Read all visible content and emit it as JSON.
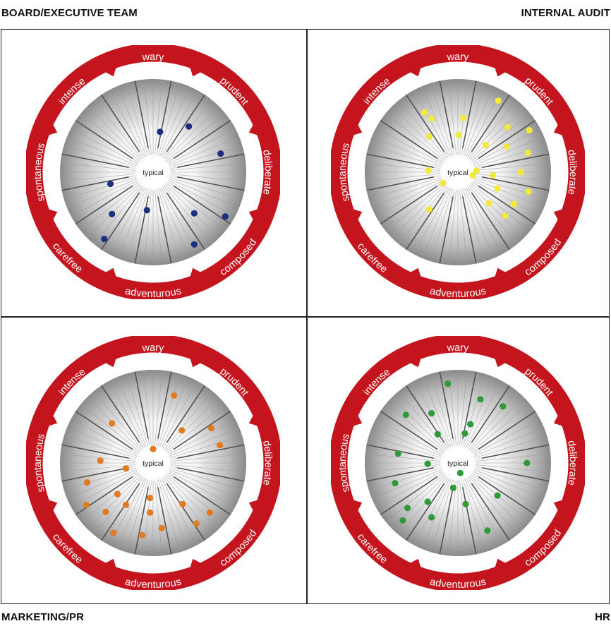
{
  "groups": [
    {
      "title": "BOARD/EXECUTIVE TEAM",
      "dot_color": "#1c2f7f",
      "points": [
        [
          0.09,
          -0.52
        ],
        [
          0.46,
          -0.59
        ],
        [
          0.87,
          -0.24
        ],
        [
          -0.55,
          0.15
        ],
        [
          -0.53,
          0.54
        ],
        [
          -0.08,
          0.49
        ],
        [
          0.53,
          0.53
        ],
        [
          0.93,
          0.57
        ],
        [
          -0.63,
          0.86
        ],
        [
          0.53,
          0.93
        ]
      ]
    },
    {
      "title": "INTERNAL AUDIT",
      "dot_color": "#f2e93c",
      "points": [
        [
          -0.43,
          -0.77
        ],
        [
          -0.34,
          -0.69
        ],
        [
          0.07,
          -0.7
        ],
        [
          0.52,
          -0.92
        ],
        [
          -0.37,
          -0.46
        ],
        [
          0.01,
          -0.48
        ],
        [
          0.64,
          -0.58
        ],
        [
          0.92,
          -0.54
        ],
        [
          0.36,
          -0.35
        ],
        [
          0.63,
          -0.33
        ],
        [
          0.9,
          -0.25
        ],
        [
          -0.38,
          -0.02
        ],
        [
          0.24,
          -0.02
        ],
        [
          0.19,
          0.04
        ],
        [
          0.45,
          0.04
        ],
        [
          0.81,
          0.0
        ],
        [
          -0.19,
          0.14
        ],
        [
          0.51,
          0.21
        ],
        [
          0.91,
          0.25
        ],
        [
          0.4,
          0.4
        ],
        [
          0.72,
          0.41
        ],
        [
          -0.37,
          0.48
        ],
        [
          0.61,
          0.56
        ]
      ]
    },
    {
      "title": "MARKETING/PR",
      "dot_color": "#e07b22",
      "points": [
        [
          0.27,
          -0.87
        ],
        [
          -0.53,
          -0.51
        ],
        [
          0.37,
          -0.42
        ],
        [
          0.75,
          -0.45
        ],
        [
          0.86,
          -0.23
        ],
        [
          0.0,
          -0.18
        ],
        [
          -0.68,
          -0.03
        ],
        [
          -0.35,
          0.07
        ],
        [
          -0.85,
          0.25
        ],
        [
          -0.46,
          0.4
        ],
        [
          -0.35,
          0.54
        ],
        [
          -0.04,
          0.45
        ],
        [
          0.38,
          0.53
        ],
        [
          0.73,
          0.64
        ],
        [
          -0.86,
          0.54
        ],
        [
          -0.61,
          0.63
        ],
        [
          -0.04,
          0.64
        ],
        [
          0.11,
          0.84
        ],
        [
          0.56,
          0.78
        ],
        [
          -0.51,
          0.9
        ],
        [
          -0.14,
          0.93
        ]
      ]
    },
    {
      "title": "HR",
      "dot_color": "#2e9a3a",
      "points": [
        [
          -0.13,
          -1.02
        ],
        [
          0.29,
          -0.82
        ],
        [
          0.58,
          -0.73
        ],
        [
          -0.67,
          -0.62
        ],
        [
          -0.34,
          -0.64
        ],
        [
          0.16,
          -0.5
        ],
        [
          0.09,
          -0.38
        ],
        [
          -0.26,
          -0.37
        ],
        [
          -0.77,
          -0.12
        ],
        [
          -0.39,
          0.01
        ],
        [
          0.89,
          0.0
        ],
        [
          0.03,
          0.13
        ],
        [
          -0.81,
          0.26
        ],
        [
          -0.06,
          0.32
        ],
        [
          -0.39,
          0.5
        ],
        [
          -0.65,
          0.58
        ],
        [
          0.51,
          0.42
        ],
        [
          0.1,
          0.53
        ],
        [
          -0.34,
          0.7
        ],
        [
          -0.71,
          0.74
        ],
        [
          0.38,
          0.87
        ]
      ]
    }
  ],
  "wheel": {
    "center_label": "typical",
    "labels": [
      "wary",
      "prudent",
      "deliberate",
      "composed",
      "adventurous",
      "carefree",
      "spontaneous",
      "intense"
    ]
  }
}
